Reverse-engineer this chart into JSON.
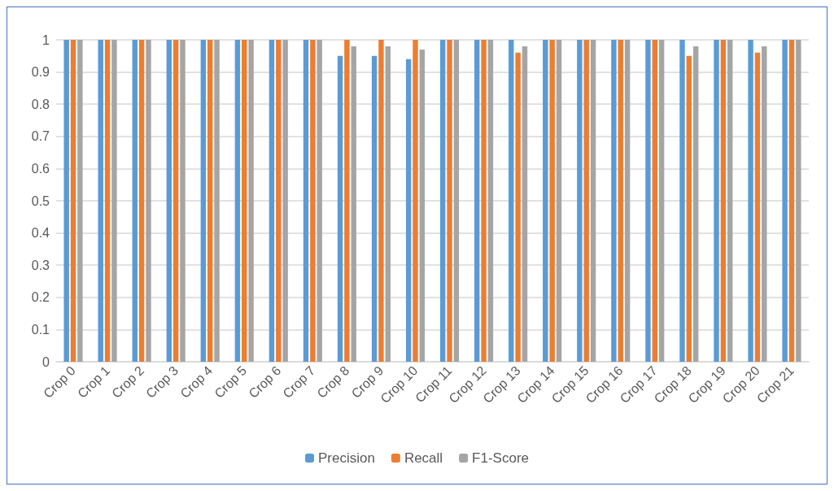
{
  "chart_data": {
    "type": "bar",
    "categories": [
      "Crop 0",
      "Crop 1",
      "Crop 2",
      "Crop 3",
      "Crop 4",
      "Crop 5",
      "Crop 6",
      "Crop 7",
      "Crop 8",
      "Crop 9",
      "Crop 10",
      "Crop 11",
      "Crop 12",
      "Crop 13",
      "Crop 14",
      "Crop 15",
      "Crop 16",
      "Crop 17",
      "Crop 18",
      "Crop 19",
      "Crop 20",
      "Crop 21"
    ],
    "series": [
      {
        "name": "Precision",
        "color": "#5b9bd5",
        "values": [
          1,
          1,
          1,
          1,
          1,
          1,
          1,
          1,
          0.95,
          0.95,
          0.94,
          1,
          1,
          1,
          1,
          1,
          1,
          1,
          1,
          1,
          1,
          1
        ]
      },
      {
        "name": "Recall",
        "color": "#ed7d31",
        "values": [
          1,
          1,
          1,
          1,
          1,
          1,
          1,
          1,
          1,
          1,
          1,
          1,
          1,
          0.96,
          1,
          1,
          1,
          1,
          0.95,
          1,
          0.96,
          1
        ]
      },
      {
        "name": "F1-Score",
        "color": "#a5a5a5",
        "values": [
          1,
          1,
          1,
          1,
          1,
          1,
          1,
          1,
          0.98,
          0.98,
          0.97,
          1,
          1,
          0.98,
          1,
          1,
          1,
          1,
          0.98,
          1,
          0.98,
          1
        ]
      }
    ],
    "ylim": [
      0,
      1
    ],
    "yticks": [
      0,
      0.1,
      0.2,
      0.3,
      0.4,
      0.5,
      0.6,
      0.7,
      0.8,
      0.9,
      1
    ],
    "grid": "y",
    "legend": "bottom"
  }
}
